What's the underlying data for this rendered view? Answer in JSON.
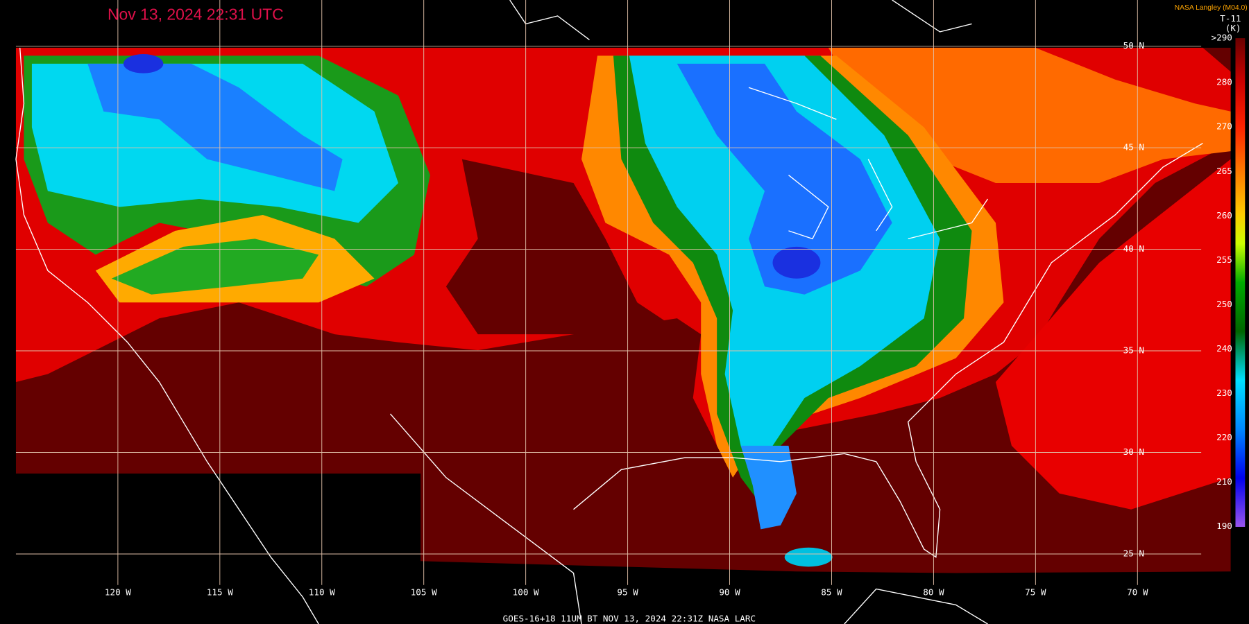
{
  "title": "Nov 13, 2024 22:31 UTC",
  "credit": "NASA Langley (M04.0)",
  "colorbar": {
    "name": "T-11",
    "unit": "(K)",
    "labels": [
      ">290",
      "280",
      "270",
      "265",
      "260",
      "255",
      "250",
      "240",
      "230",
      "220",
      "210",
      "190"
    ]
  },
  "latitude_labels": [
    "50 N",
    "45 N",
    "40 N",
    "35 N",
    "30 N",
    "25 N"
  ],
  "longitude_labels": [
    "120 W",
    "115 W",
    "110 W",
    "105 W",
    "100 W",
    "95 W",
    "90 W",
    "85 W",
    "80 W",
    "75 W",
    "70 W"
  ],
  "footer": "GOES-16+18  11UM BT  NOV 13, 2024 22:31Z  NASA LARC"
}
